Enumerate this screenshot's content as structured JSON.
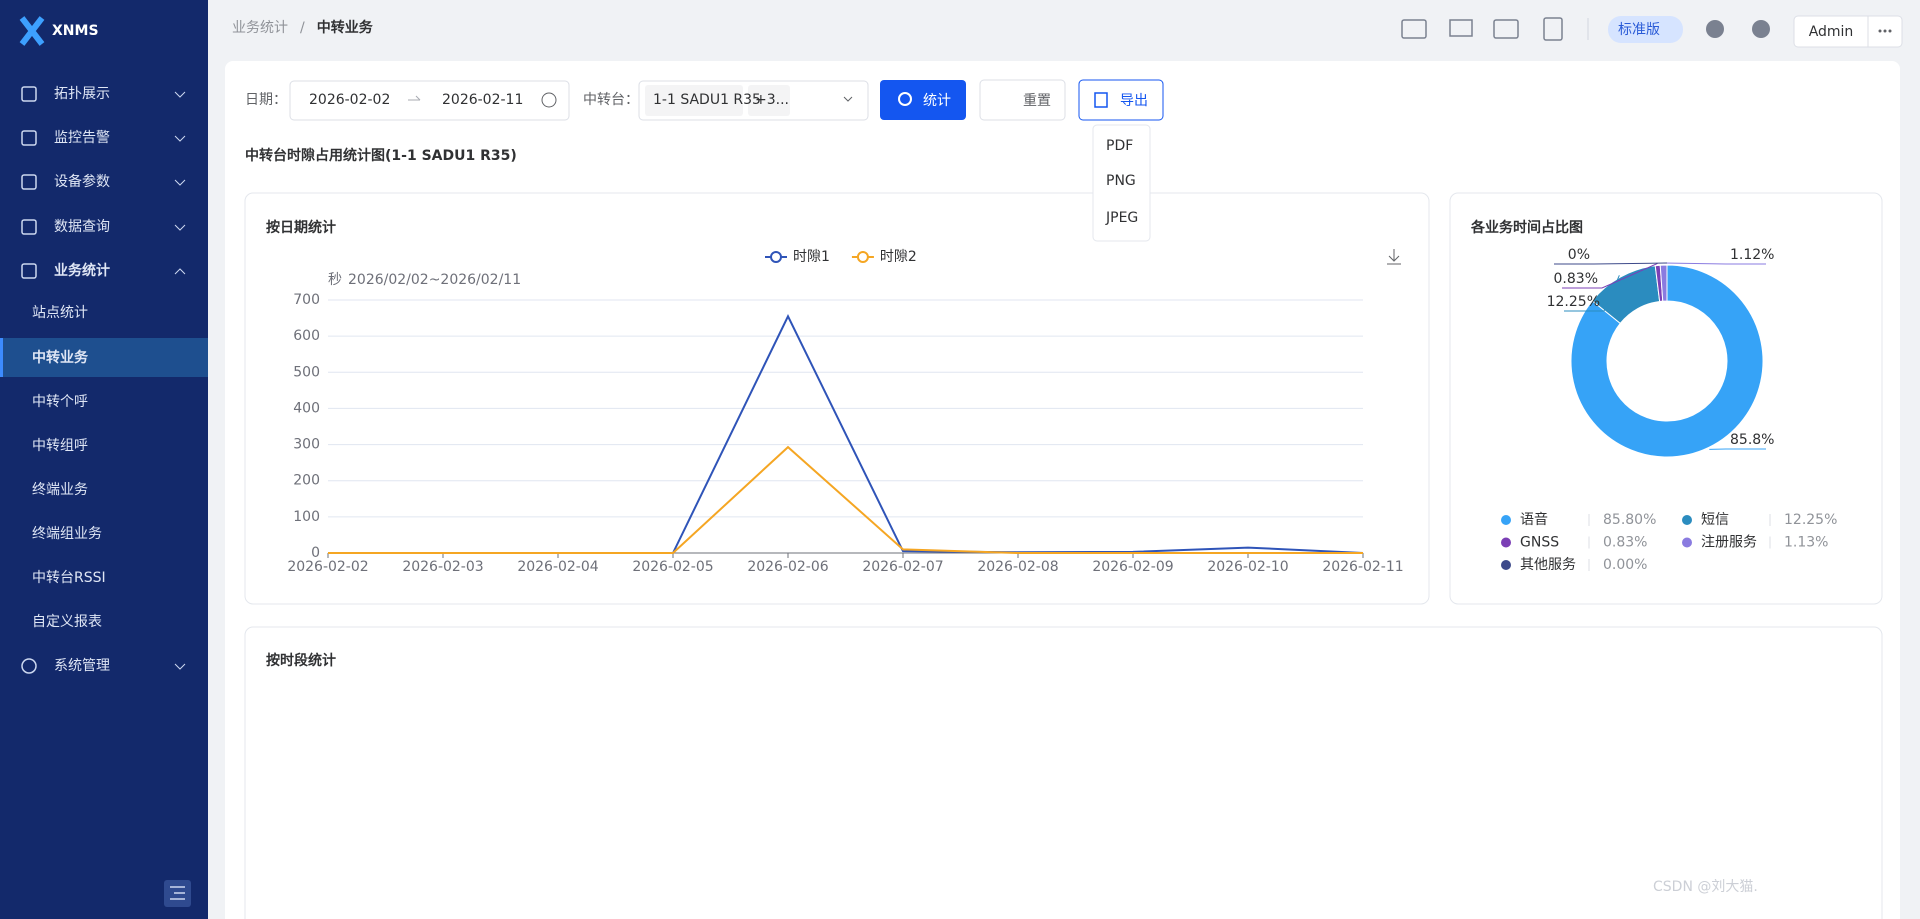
{
  "sidebar": {
    "logo": "XNMS",
    "menu": [
      "拓扑展示",
      "监控告警",
      "设备参数",
      "数据查询",
      "业务统计"
    ],
    "submenu": [
      "站点统计",
      "中转业务",
      "中转个呼",
      "中转组呼",
      "终端业务",
      "终端组业务",
      "中转台RSSI",
      "自定义报表"
    ],
    "system": "系统管理"
  },
  "header": {
    "breadcrumb": [
      "业务统计",
      "/",
      "中转业务"
    ],
    "edition": "标准版",
    "user": "Admin"
  },
  "toolbar": {
    "date_label": "日期：",
    "date_start": "2026-02-02",
    "date_end": "2026-02-11",
    "relay_label": "中转台：",
    "relay_tag": "1-1 SADU1 R35",
    "relay_more": "+3...",
    "search": "统计",
    "reset": "重置",
    "export": "导出",
    "export_menu": [
      "PDF",
      "PNG",
      "JPEG"
    ]
  },
  "page_title": "中转台时隙占用统计图(1-1 SADU1 R35)",
  "section_title": "按时段统计",
  "watermark": "CSDN @刘大猫.",
  "chart_data": [
    {
      "type": "line",
      "title": "按日期统计",
      "y_unit": "秒",
      "subtitle": "2026/02/02~2026/02/11",
      "categories": [
        "2026-02-02",
        "2026-02-03",
        "2026-02-04",
        "2026-02-05",
        "2026-02-06",
        "2026-02-07",
        "2026-02-08",
        "2026-02-09",
        "2026-02-10",
        "2026-02-11"
      ],
      "series": [
        {
          "name": "时隙1",
          "color": "#2f54b8",
          "values": [
            0,
            0,
            0,
            0,
            655,
            5,
            2,
            3,
            15,
            0
          ]
        },
        {
          "name": "时隙2",
          "color": "#f5a623",
          "values": [
            0,
            0,
            0,
            0,
            293,
            10,
            0,
            0,
            0,
            0
          ]
        }
      ],
      "ylim": [
        0,
        700
      ],
      "yticks": [
        0,
        100,
        200,
        300,
        400,
        500,
        600,
        700
      ],
      "grid": true,
      "legend": "top"
    },
    {
      "type": "pie",
      "title": "各业务时间占比图",
      "donut": true,
      "legend": "bottom",
      "categories": [
        "语音",
        "短信",
        "GNSS",
        "注册服务",
        "其他服务"
      ],
      "values": [
        85.8,
        12.25,
        0.83,
        1.125,
        0
      ],
      "value_labels": [
        "85.8%",
        "12.25%",
        "0.83%",
        "1.12%",
        "0%"
      ],
      "legend_labels": [
        "85.80%",
        "12.25%",
        "0.83%",
        "1.13%",
        "0.00%"
      ],
      "colors": [
        "#36a3f7",
        "#2b8cbf",
        "#7b3fb5",
        "#8a7be0",
        "#3d4a8a"
      ]
    }
  ]
}
